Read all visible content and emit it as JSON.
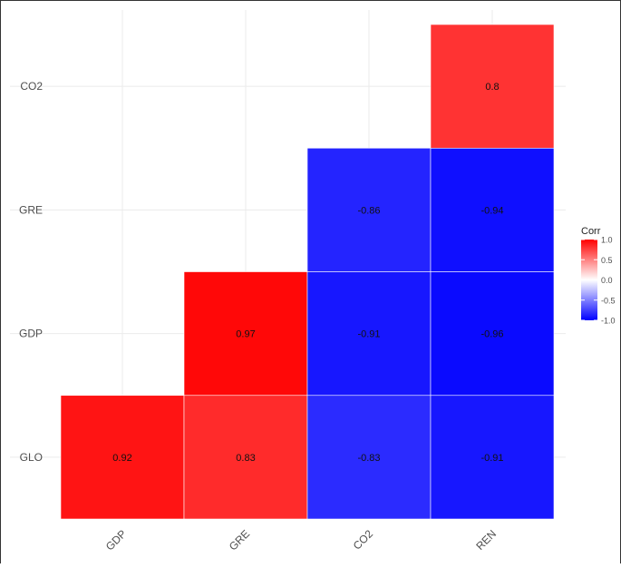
{
  "chart_data": {
    "type": "heatmap",
    "title": "",
    "xlabel": "",
    "ylabel": "",
    "x_categories": [
      "GDP",
      "GRE",
      "CO2",
      "REN"
    ],
    "y_categories": [
      "GLO",
      "GDP",
      "GRE",
      "CO2"
    ],
    "cells": [
      {
        "x": "GDP",
        "y": "GLO",
        "value": 0.92,
        "label": "0.92"
      },
      {
        "x": "GRE",
        "y": "GLO",
        "value": 0.83,
        "label": "0.83"
      },
      {
        "x": "CO2",
        "y": "GLO",
        "value": -0.83,
        "label": "-0.83"
      },
      {
        "x": "REN",
        "y": "GLO",
        "value": -0.91,
        "label": "-0.91"
      },
      {
        "x": "GRE",
        "y": "GDP",
        "value": 0.97,
        "label": "0.97"
      },
      {
        "x": "CO2",
        "y": "GDP",
        "value": -0.91,
        "label": "-0.91"
      },
      {
        "x": "REN",
        "y": "GDP",
        "value": -0.96,
        "label": "-0.96"
      },
      {
        "x": "CO2",
        "y": "GRE",
        "value": -0.86,
        "label": "-0.86"
      },
      {
        "x": "REN",
        "y": "GRE",
        "value": -0.94,
        "label": "-0.94"
      },
      {
        "x": "REN",
        "y": "CO2",
        "value": 0.8,
        "label": "0.8"
      }
    ],
    "legend": {
      "title": "Corr",
      "position": "right",
      "range": [
        -1.0,
        1.0
      ],
      "ticks": [
        {
          "value": 1.0,
          "label": "1.0"
        },
        {
          "value": 0.5,
          "label": "0.5"
        },
        {
          "value": 0.0,
          "label": "0.0"
        },
        {
          "value": -0.5,
          "label": "-0.5"
        },
        {
          "value": -1.0,
          "label": "-1.0"
        }
      ]
    },
    "colors": {
      "high": "#ff0000",
      "mid": "#ffffff",
      "low": "#0000ff"
    },
    "grid": true
  }
}
